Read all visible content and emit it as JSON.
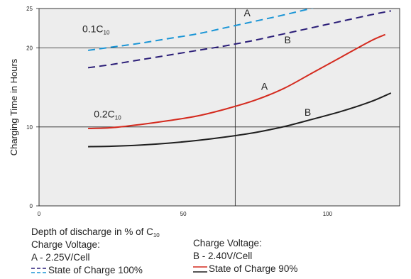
{
  "chart_data": {
    "type": "line",
    "xlabel": "Depth of discharge in % of C",
    "xlabel_sub": "10",
    "ylabel": "Charging Time in Hours",
    "xlim": [
      0,
      125
    ],
    "ylim": [
      0,
      25
    ],
    "xticks": [
      0,
      50,
      100
    ],
    "yticks": [
      0,
      10,
      20,
      25
    ],
    "grid_x": [
      68
    ],
    "grid_y": [
      10,
      20
    ],
    "group_labels": [
      {
        "text": "0.1C",
        "sub": "10",
        "x": 15,
        "y": 22
      },
      {
        "text": "0.2C",
        "sub": "10",
        "x": 19,
        "y": 11.2
      }
    ],
    "series": [
      {
        "name": "0.1C A",
        "label": "A",
        "label_x": 71,
        "label_y": 24,
        "style": "dashed",
        "color": "#1a95d6",
        "points": [
          [
            17,
            19.7
          ],
          [
            25,
            20.1
          ],
          [
            35,
            20.6
          ],
          [
            45,
            21.2
          ],
          [
            55,
            21.8
          ],
          [
            65,
            22.6
          ],
          [
            75,
            23.4
          ],
          [
            85,
            24.2
          ],
          [
            100,
            25.5
          ],
          [
            113,
            26.5
          ]
        ]
      },
      {
        "name": "0.1C B",
        "label": "B",
        "label_x": 85,
        "label_y": 20.6,
        "style": "dashed",
        "color": "#2b1e78",
        "points": [
          [
            17,
            17.5
          ],
          [
            25,
            17.9
          ],
          [
            35,
            18.5
          ],
          [
            45,
            19.1
          ],
          [
            55,
            19.7
          ],
          [
            65,
            20.3
          ],
          [
            75,
            21.0
          ],
          [
            85,
            21.8
          ],
          [
            95,
            22.6
          ],
          [
            105,
            23.4
          ],
          [
            115,
            24.2
          ],
          [
            122,
            24.7
          ]
        ]
      },
      {
        "name": "0.2C A",
        "label": "A",
        "label_x": 77,
        "label_y": 14.7,
        "style": "solid",
        "color": "#d42a1e",
        "points": [
          [
            17,
            9.8
          ],
          [
            25,
            9.9
          ],
          [
            35,
            10.3
          ],
          [
            45,
            10.8
          ],
          [
            55,
            11.4
          ],
          [
            65,
            12.3
          ],
          [
            75,
            13.4
          ],
          [
            85,
            14.9
          ],
          [
            95,
            16.9
          ],
          [
            105,
            18.9
          ],
          [
            115,
            20.9
          ],
          [
            120,
            21.7
          ]
        ]
      },
      {
        "name": "0.2C B",
        "label": "B",
        "label_x": 92,
        "label_y": 11.4,
        "style": "solid",
        "color": "#1f1f1f",
        "points": [
          [
            17,
            7.5
          ],
          [
            25,
            7.55
          ],
          [
            35,
            7.7
          ],
          [
            45,
            7.95
          ],
          [
            55,
            8.3
          ],
          [
            65,
            8.75
          ],
          [
            75,
            9.3
          ],
          [
            85,
            10.05
          ],
          [
            95,
            11.0
          ],
          [
            105,
            12.0
          ],
          [
            115,
            13.2
          ],
          [
            122,
            14.3
          ]
        ]
      }
    ]
  },
  "legend": {
    "col1_title": "Charge Voltage:",
    "col1_value": "A - 2.25V/Cell",
    "col1_item": "State of Charge 100%",
    "col2_title": "Charge Voltage:",
    "col2_value": "B - 2.40V/Cell",
    "col2_item": "State of Charge 90%"
  }
}
